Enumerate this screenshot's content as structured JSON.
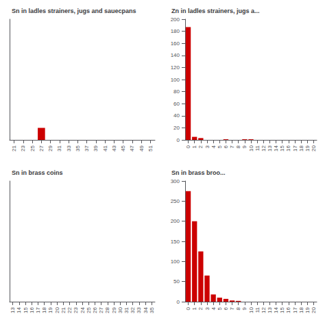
{
  "chart_data": [
    {
      "type": "bar",
      "title": "Sn in ladles strainers, jugs and sauecpans",
      "categories": [
        "21",
        "23",
        "25",
        "27",
        "29",
        "31",
        "33",
        "35",
        "37",
        "39",
        "41",
        "43",
        "45",
        "47",
        "49",
        "51"
      ],
      "values": [
        0,
        0,
        0,
        1,
        0,
        0,
        0,
        0,
        0,
        0,
        0,
        0,
        0,
        0,
        0,
        0
      ],
      "color": "#cc0000",
      "ylim": [
        0,
        10
      ],
      "grid": false,
      "tick_labels": "x"
    },
    {
      "type": "bar",
      "title": "Zn in ladles strainers, jugs a...",
      "categories": [
        "0",
        "1",
        "2",
        "3",
        "4",
        "5",
        "6",
        "7",
        "8",
        "9",
        "10",
        "11",
        "12",
        "13",
        "14",
        "15",
        "16",
        "17",
        "18",
        "19",
        "20"
      ],
      "values": [
        187,
        5,
        3,
        0,
        0,
        0,
        1,
        0,
        0,
        1,
        1,
        0,
        0,
        0,
        0,
        0,
        0,
        0,
        0,
        0,
        0
      ],
      "color": "#cc0000",
      "ylim": [
        0,
        200
      ],
      "yticks": [
        0,
        20,
        40,
        60,
        80,
        100,
        120,
        140,
        160,
        180,
        200
      ],
      "grid": false
    },
    {
      "type": "bar",
      "title": "Sn in brass coins",
      "categories": [
        "13",
        "14",
        "15",
        "16",
        "17",
        "18",
        "19",
        "20",
        "21",
        "22",
        "23",
        "24",
        "25",
        "26",
        "27",
        "28",
        "29",
        "30",
        "31",
        "32",
        "33",
        "34",
        "35"
      ],
      "values": [
        0,
        0,
        0,
        0,
        0,
        0,
        0,
        0,
        0,
        0,
        0,
        0,
        0,
        0,
        0,
        0,
        0,
        0,
        0,
        0,
        0,
        0,
        0
      ],
      "color": "#cc0000",
      "ylim": [
        0,
        10
      ],
      "grid": false,
      "tick_labels": "x"
    },
    {
      "type": "bar",
      "title": "Sn in brass broo...",
      "categories": [
        "0",
        "1",
        "2",
        "3",
        "4",
        "5",
        "6",
        "7",
        "8",
        "9",
        "10",
        "11",
        "12",
        "13",
        "14",
        "15",
        "16",
        "17",
        "18",
        "19",
        "20"
      ],
      "values": [
        275,
        200,
        125,
        65,
        18,
        10,
        7,
        3,
        2,
        0,
        0,
        0,
        0,
        0,
        0,
        0,
        0,
        0,
        0,
        0,
        0
      ],
      "color": "#cc0000",
      "ylim": [
        0,
        300
      ],
      "yticks": [
        0,
        50,
        100,
        150,
        200,
        250,
        300
      ],
      "grid": false
    }
  ]
}
